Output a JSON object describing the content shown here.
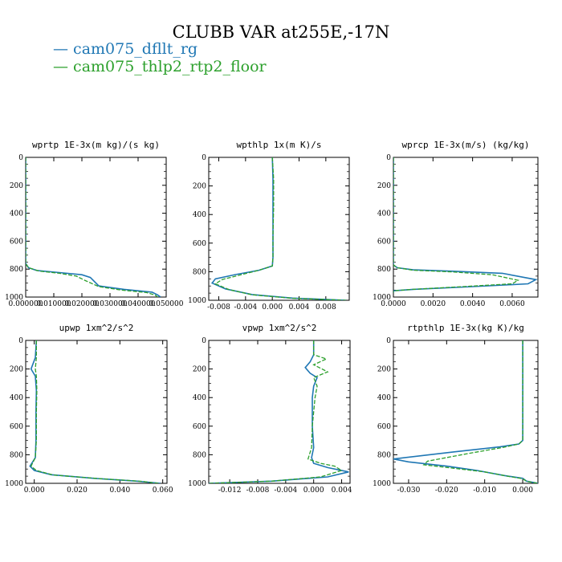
{
  "title": "CLUBB VAR at255E,-17N",
  "legend": [
    {
      "label": "cam075_dfllt_rg",
      "color": "#1f77b4"
    },
    {
      "label": "cam075_thlp2_rtp2_floor",
      "color": "#2ca02c"
    }
  ],
  "chart_data": [
    {
      "type": "line",
      "title": "wprtp 1E-3x(m kg)/(s kg)",
      "xlim": [
        0,
        0.05
      ],
      "ylim": [
        1000,
        0
      ],
      "xticks": [
        "0.000000",
        "0.010000",
        "0.020000",
        "0.030000",
        "0.040000",
        "0.050000"
      ],
      "xtick_values": [
        0,
        0.01,
        0.02,
        0.03,
        0.04,
        0.05
      ],
      "yticks": [
        "0",
        "200",
        "400",
        "600",
        "800",
        "1000"
      ],
      "series": [
        {
          "name": "cam075_dfllt_rg",
          "color": "#1f77b4",
          "dashed": false,
          "x": [
            0,
            0,
            0,
            0.001,
            0.004,
            0.012,
            0.02,
            0.023,
            0.026,
            0.035,
            0.045,
            0.047,
            0.048
          ],
          "y": [
            0,
            500,
            760,
            790,
            810,
            825,
            840,
            860,
            920,
            945,
            965,
            985,
            1000
          ]
        },
        {
          "name": "cam075_thlp2_rtp2_floor",
          "color": "#2ca02c",
          "dashed": true,
          "x": [
            0,
            0,
            0,
            0.001,
            0.005,
            0.012,
            0.018,
            0.021,
            0.026,
            0.034,
            0.043,
            0.046,
            0.047
          ],
          "y": [
            0,
            500,
            760,
            790,
            815,
            830,
            850,
            880,
            925,
            950,
            968,
            985,
            1000
          ]
        }
      ]
    },
    {
      "type": "line",
      "title": "wpthlp 1x(m K)/s",
      "xlim": [
        -0.0095,
        0.0115
      ],
      "ylim": [
        1000,
        0
      ],
      "xticks": [
        "-0.008",
        "-0.004",
        "0.000",
        "0.004",
        "0.008"
      ],
      "xtick_values": [
        -0.008,
        -0.004,
        0,
        0.004,
        0.008
      ],
      "yticks": [
        "0",
        "200",
        "400",
        "600",
        "800",
        "1000"
      ],
      "series": [
        {
          "name": "cam075_dfllt_rg",
          "color": "#1f77b4",
          "dashed": false,
          "x": [
            0,
            0.0001,
            0.0001,
            0.0001,
            0.0001,
            0,
            -0.002,
            -0.0055,
            -0.0085,
            -0.009,
            -0.007,
            -0.003,
            0.003,
            0.011
          ],
          "y": [
            0,
            150,
            350,
            550,
            700,
            760,
            790,
            820,
            850,
            880,
            920,
            960,
            985,
            1000
          ]
        },
        {
          "name": "cam075_thlp2_rtp2_floor",
          "color": "#2ca02c",
          "dashed": true,
          "x": [
            0,
            0.0002,
            0.0002,
            0.0001,
            0.0001,
            0,
            -0.002,
            -0.005,
            -0.0075,
            -0.0085,
            -0.0065,
            -0.003,
            0.003,
            0.011
          ],
          "y": [
            0,
            150,
            350,
            550,
            700,
            760,
            790,
            825,
            855,
            885,
            925,
            962,
            986,
            1000
          ]
        }
      ]
    },
    {
      "type": "line",
      "title": "wprcp 1E-3x(m/s) (kg/kg)",
      "xlim": [
        0,
        0.0073
      ],
      "ylim": [
        1000,
        0
      ],
      "xticks": [
        "0.0000",
        "0.0020",
        "0.0040",
        "0.0060"
      ],
      "xtick_values": [
        0,
        0.002,
        0.004,
        0.006
      ],
      "yticks": [
        "0",
        "200",
        "400",
        "600",
        "800",
        "1000"
      ],
      "series": [
        {
          "name": "cam075_dfllt_rg",
          "color": "#1f77b4",
          "dashed": false,
          "x": [
            0,
            0,
            0,
            0.0002,
            0.001,
            0.003,
            0.0055,
            0.0072,
            0.0068,
            0.004,
            0.001,
            0,
            0
          ],
          "y": [
            0,
            500,
            770,
            790,
            805,
            815,
            830,
            875,
            905,
            925,
            945,
            955,
            970
          ]
        },
        {
          "name": "cam075_thlp2_rtp2_floor",
          "color": "#2ca02c",
          "dashed": true,
          "x": [
            0,
            0,
            0,
            0.0002,
            0.001,
            0.003,
            0.005,
            0.0063,
            0.006,
            0.0035,
            0.001,
            0,
            0
          ],
          "y": [
            0,
            500,
            770,
            790,
            808,
            820,
            840,
            880,
            905,
            925,
            945,
            955,
            970
          ]
        }
      ]
    },
    {
      "type": "line",
      "title": "upwp 1xm^2/s^2",
      "xlim": [
        -0.004,
        0.062
      ],
      "ylim": [
        1000,
        0
      ],
      "xticks": [
        "0.000",
        "0.020",
        "0.040",
        "0.060"
      ],
      "xtick_values": [
        0,
        0.02,
        0.04,
        0.06
      ],
      "yticks": [
        "0",
        "200",
        "400",
        "600",
        "800",
        "1000"
      ],
      "series": [
        {
          "name": "cam075_dfllt_rg",
          "color": "#1f77b4",
          "dashed": false,
          "x": [
            0.001,
            0.0005,
            -0.0015,
            0.0005,
            0.001,
            0.0008,
            0.0008,
            0.0005,
            -0.002,
            0.0,
            0.008,
            0.028,
            0.048,
            0.059
          ],
          "y": [
            0,
            120,
            200,
            250,
            350,
            500,
            700,
            820,
            880,
            910,
            940,
            965,
            985,
            1000
          ]
        },
        {
          "name": "cam075_thlp2_rtp2_floor",
          "color": "#2ca02c",
          "dashed": true,
          "x": [
            0.001,
            0.001,
            0.0005,
            0.001,
            0.0012,
            0.001,
            0.001,
            0.0005,
            -0.0015,
            0.001,
            0.009,
            0.03,
            0.05,
            0.058
          ],
          "y": [
            0,
            120,
            200,
            250,
            350,
            500,
            700,
            820,
            880,
            910,
            942,
            967,
            986,
            1000
          ]
        }
      ]
    },
    {
      "type": "line",
      "title": "vpwp 1xm^2/s^2",
      "xlim": [
        -0.015,
        0.0052
      ],
      "ylim": [
        1000,
        0
      ],
      "xticks": [
        "-0.012",
        "-0.008",
        "-0.004",
        "0.000",
        "0.004"
      ],
      "xtick_values": [
        -0.012,
        -0.008,
        -0.004,
        0,
        0.004
      ],
      "yticks": [
        "0",
        "200",
        "400",
        "600",
        "800",
        "1000"
      ],
      "series": [
        {
          "name": "cam075_dfllt_rg",
          "color": "#1f77b4",
          "dashed": false,
          "x": [
            0,
            0,
            -0.0005,
            -0.0012,
            -0.0005,
            0.0005,
            0,
            -0.0002,
            -0.0002,
            0,
            -0.0003,
            0,
            0.002,
            0.005,
            0.002,
            -0.006,
            -0.015
          ],
          "y": [
            0,
            100,
            150,
            190,
            230,
            260,
            320,
            400,
            600,
            750,
            820,
            860,
            890,
            920,
            955,
            985,
            1000
          ]
        },
        {
          "name": "cam075_thlp2_rtp2_floor",
          "color": "#2ca02c",
          "dashed": true,
          "x": [
            0,
            0,
            0.0018,
            0.0,
            0.002,
            0.0,
            0.0005,
            0.0002,
            -0.0002,
            -0.0003,
            -0.0008,
            0.001,
            0.003,
            0.004,
            0.001,
            -0.006,
            -0.015
          ],
          "y": [
            0,
            100,
            130,
            170,
            220,
            260,
            320,
            400,
            600,
            750,
            830,
            860,
            880,
            910,
            955,
            985,
            1000
          ]
        }
      ]
    },
    {
      "type": "line",
      "title": "rtpthlp 1E-3x(kg K)/kg",
      "xlim": [
        -0.034,
        0.004
      ],
      "ylim": [
        1000,
        0
      ],
      "xticks": [
        "-0.030",
        "-0.020",
        "-0.010",
        "0.000"
      ],
      "xtick_values": [
        -0.03,
        -0.02,
        -0.01,
        0
      ],
      "yticks": [
        "0",
        "200",
        "400",
        "600",
        "800",
        "1000"
      ],
      "series": [
        {
          "name": "cam075_dfllt_rg",
          "color": "#1f77b4",
          "dashed": false,
          "x": [
            0,
            0,
            0,
            0,
            -0.001,
            -0.006,
            -0.018,
            -0.034,
            -0.03,
            -0.02,
            -0.012,
            -0.005,
            0,
            0.001,
            0.004
          ],
          "y": [
            0,
            200,
            500,
            700,
            725,
            745,
            780,
            830,
            850,
            880,
            910,
            945,
            965,
            985,
            1000
          ]
        },
        {
          "name": "cam075_thlp2_rtp2_floor",
          "color": "#2ca02c",
          "dashed": true,
          "x": [
            0,
            0,
            0,
            0,
            -0.001,
            -0.005,
            -0.014,
            -0.025,
            -0.026,
            -0.018,
            -0.01,
            -0.004,
            0,
            0.001,
            0.004
          ],
          "y": [
            0,
            200,
            500,
            700,
            725,
            748,
            790,
            845,
            870,
            895,
            920,
            950,
            968,
            986,
            1000
          ]
        }
      ]
    }
  ]
}
